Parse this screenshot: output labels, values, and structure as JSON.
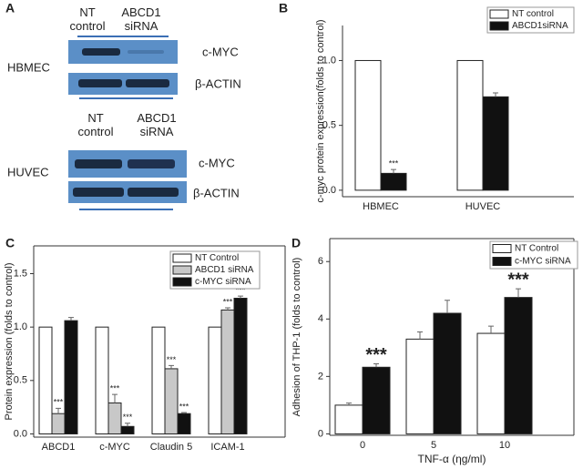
{
  "blot": {
    "panel": "A",
    "groups": [
      {
        "name": "HBMEC",
        "lanes": [
          "NT control",
          "ABCD1 siRNA"
        ],
        "bands": [
          "c-MYC",
          "β-ACTIN"
        ]
      },
      {
        "name": "HUVEC",
        "lanes": [
          "NT control",
          "ABCD1 siRNA"
        ],
        "bands": [
          "c-MYC",
          "β-ACTIN"
        ]
      }
    ]
  },
  "chart_data": [
    {
      "type": "bar",
      "panel": "B",
      "y_label": "c-myc protein expression(folds to control)",
      "categories": [
        "HBMEC",
        "HUVEC"
      ],
      "series": [
        {
          "name": "NT control",
          "color": "#ffffff",
          "values": [
            1.0,
            1.0
          ]
        },
        {
          "name": "ABCD1siRNA",
          "color": "#111111",
          "values": [
            0.13,
            0.72
          ],
          "errors": [
            0.03,
            0.03
          ],
          "significance": [
            "***",
            null
          ]
        }
      ],
      "ylim": [
        -0.05,
        1.27
      ],
      "yticks": [
        {
          "value": 0,
          "label": "0.0"
        },
        0.5,
        {
          "value": 1,
          "label": "1.0"
        }
      ],
      "frame": false,
      "legend": "top-right"
    },
    {
      "type": "bar",
      "panel": "C",
      "y_label": "Protein expression (folds to control)",
      "categories": [
        "ABCD1",
        "c-MYC",
        "Claudin 5",
        "ICAM-1"
      ],
      "series": [
        {
          "name": "NT Control",
          "color": "#ffffff",
          "values": [
            1.0,
            1.0,
            1.0,
            1.0
          ]
        },
        {
          "name": "ABCD1 siRNA",
          "color": "#c8c8c8",
          "values": [
            0.19,
            0.29,
            0.61,
            1.16
          ],
          "errors": [
            0.05,
            0.08,
            0.03,
            0.02
          ],
          "significance": [
            "***",
            "***",
            "***",
            "***"
          ]
        },
        {
          "name": "c-MYC siRNA",
          "color": "#111111",
          "values": [
            1.06,
            0.07,
            0.19,
            1.27
          ],
          "errors": [
            0.03,
            0.03,
            0.01,
            0.02
          ],
          "significance": [
            null,
            "***",
            "***",
            "***"
          ]
        }
      ],
      "ylim": [
        -0.03,
        1.76
      ],
      "yticks": [
        {
          "value": 0,
          "label": "0.0"
        },
        0.5,
        {
          "value": 1,
          "label": "1.0"
        },
        1.5
      ],
      "frame": true,
      "legend": "top-right"
    },
    {
      "type": "bar",
      "panel": "D",
      "y_label": "Adhesion of THP-1 (folds to control)",
      "x_label": "TNF-α (ηg/ml)",
      "categories": [
        "0",
        "5",
        "10"
      ],
      "series": [
        {
          "name": "NT Control",
          "color": "#ffffff",
          "values": [
            1.0,
            3.3,
            3.5
          ],
          "errors": [
            0.07,
            0.25,
            0.25
          ]
        },
        {
          "name": "c-MYC siRNA",
          "color": "#111111",
          "values": [
            2.32,
            4.2,
            4.75
          ],
          "errors": [
            0.12,
            0.45,
            0.3
          ],
          "significance": [
            "***",
            null,
            "***"
          ]
        }
      ],
      "ylim": [
        -0.05,
        6.8
      ],
      "yticks": [
        0,
        2,
        4,
        6
      ],
      "frame": true,
      "legend": "top-right"
    }
  ]
}
